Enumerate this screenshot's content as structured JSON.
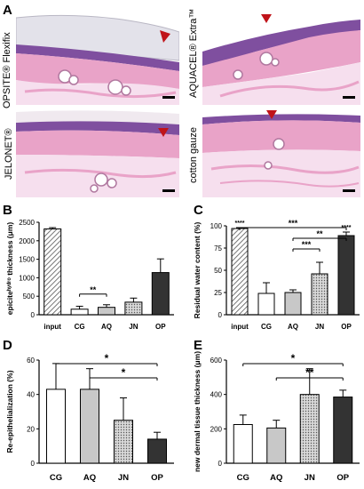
{
  "panel_letters": {
    "a": "A",
    "b": "B",
    "c": "C",
    "d": "D",
    "e": "E"
  },
  "histology": {
    "opsite": "OPSITE® Flexifix",
    "aquacel": "AQUACEL® Extra™",
    "jelonet": "JELONET®",
    "gauze": "cotton gauze"
  },
  "colors": {
    "tissue_pink": "#e9a3c8",
    "dermis_pale": "#f6dfee",
    "epidermis_purple": "#7f4f9f",
    "dressing_gray": "#d9d8e0",
    "arrowhead": "#c0141a",
    "bar_dark": "#333333",
    "bar_light": "#c8c8c8"
  },
  "chart_data": [
    {
      "panel": "B",
      "type": "bar",
      "categories": [
        "input",
        "CG",
        "AQ",
        "JN",
        "OP"
      ],
      "values": [
        2320,
        150,
        200,
        340,
        1140
      ],
      "errors": [
        35,
        80,
        70,
        110,
        370
      ],
      "fills": [
        "hatch",
        "white",
        "light",
        "dots",
        "dark"
      ],
      "ylabel": "epiciteʰʸᵈʳᵒ thickness (μm)",
      "ylim": [
        0,
        2500
      ],
      "yticks": [
        "0",
        "500",
        "1000",
        "1500",
        "2000",
        "2500"
      ],
      "significance": [
        {
          "from": "CG",
          "to": "AQ",
          "label": "**"
        }
      ]
    },
    {
      "panel": "C",
      "type": "bar",
      "categories": [
        "input",
        "CG",
        "AQ",
        "JN",
        "OP"
      ],
      "values": [
        97,
        24,
        25,
        46,
        89
      ],
      "errors": [
        1,
        12,
        3,
        13,
        4
      ],
      "fills": [
        "hatch",
        "white",
        "light",
        "dots",
        "dark"
      ],
      "ylabel": "Residual water content (%)",
      "ylim": [
        0,
        100
      ],
      "yticks": [
        "0",
        "25",
        "50",
        "75",
        "100"
      ],
      "bar_labels": [
        "****",
        "",
        "",
        "",
        "****"
      ],
      "significance": [
        {
          "from": "input",
          "to": "OP",
          "label": "***"
        },
        {
          "from": "AQ",
          "to": "OP",
          "label": "**"
        },
        {
          "from": "AQ",
          "to": "JN",
          "label": "***"
        }
      ]
    },
    {
      "panel": "D",
      "type": "bar",
      "categories": [
        "CG",
        "AQ",
        "JN",
        "OP"
      ],
      "values": [
        43,
        43,
        25,
        14
      ],
      "errors": [
        15,
        12,
        13,
        4
      ],
      "fills": [
        "white",
        "light",
        "dots",
        "dark"
      ],
      "ylabel": "Re-epithelialization (%)",
      "ylim": [
        0,
        60
      ],
      "yticks": [
        "0",
        "20",
        "40",
        "60"
      ],
      "significance": [
        {
          "from": "CG",
          "to": "OP",
          "label": "*"
        },
        {
          "from": "AQ",
          "to": "OP",
          "label": "*"
        }
      ]
    },
    {
      "panel": "E",
      "type": "bar",
      "categories": [
        "CG",
        "AQ",
        "JN",
        "OP"
      ],
      "values": [
        225,
        205,
        400,
        385
      ],
      "errors": [
        55,
        45,
        150,
        40
      ],
      "fills": [
        "white",
        "light",
        "dots",
        "dark"
      ],
      "ylabel": "new dermal tissue thickness (μm)",
      "ylim": [
        0,
        600
      ],
      "yticks": [
        "0",
        "200",
        "400",
        "600"
      ],
      "significance": [
        {
          "from": "CG",
          "to": "OP",
          "label": "*"
        },
        {
          "from": "AQ",
          "to": "OP",
          "label": "**"
        }
      ]
    }
  ]
}
